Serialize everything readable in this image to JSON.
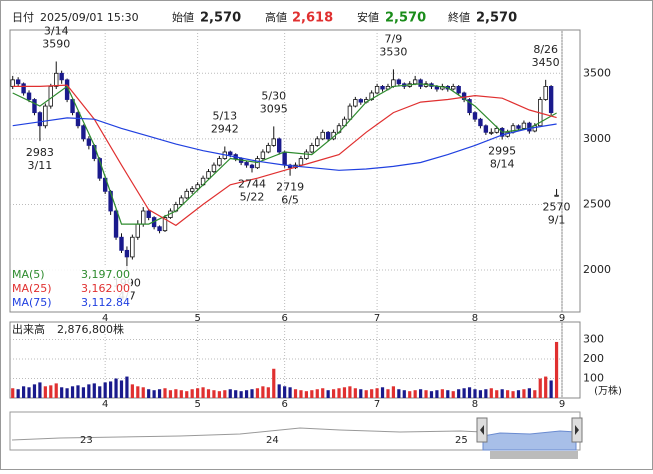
{
  "header": {
    "date_label": "日付",
    "datetime": "2025/09/01 15:30",
    "fields": [
      {
        "label": "始値",
        "value": "2,570"
      },
      {
        "label": "高値",
        "value": "2,618"
      },
      {
        "label": "安値",
        "value": "2,570"
      },
      {
        "label": "終値",
        "value": "2,570"
      }
    ]
  },
  "chart_data": [
    {
      "type": "candlestick",
      "xlim": [
        -0.5,
        101
      ],
      "ylim": [
        1680,
        3830
      ],
      "yticks": [
        2000,
        2500,
        3000,
        3500
      ],
      "grid": true,
      "xticks": [
        {
          "value": 17,
          "label": "4"
        },
        {
          "value": 34,
          "label": "5"
        },
        {
          "value": 50,
          "label": "6"
        },
        {
          "value": 67,
          "label": "7"
        },
        {
          "value": 85,
          "label": "8"
        },
        {
          "value": 101,
          "label": "9"
        }
      ],
      "up_color": "#ffffff",
      "down_color": "#1a1a8c",
      "ohlc": [
        [
          3400,
          3480,
          3380,
          3450
        ],
        [
          3450,
          3470,
          3400,
          3420
        ],
        [
          3420,
          3430,
          3330,
          3350
        ],
        [
          3350,
          3370,
          3280,
          3300
        ],
        [
          3300,
          3310,
          3180,
          3200
        ],
        [
          3200,
          3210,
          2983,
          3100
        ],
        [
          3100,
          3270,
          3080,
          3250
        ],
        [
          3250,
          3420,
          3230,
          3400
        ],
        [
          3400,
          3590,
          3380,
          3500
        ],
        [
          3500,
          3520,
          3420,
          3450
        ],
        [
          3450,
          3460,
          3280,
          3300
        ],
        [
          3300,
          3310,
          3180,
          3200
        ],
        [
          3200,
          3210,
          3080,
          3100
        ],
        [
          3100,
          3110,
          2980,
          3000
        ],
        [
          3000,
          3020,
          2920,
          2950
        ],
        [
          2950,
          2960,
          2830,
          2850
        ],
        [
          2850,
          2860,
          2680,
          2700
        ],
        [
          2700,
          2720,
          2580,
          2600
        ],
        [
          2600,
          2610,
          2420,
          2450
        ],
        [
          2450,
          2460,
          2230,
          2250
        ],
        [
          2250,
          2280,
          2130,
          2150
        ],
        [
          2150,
          2180,
          1990,
          2100
        ],
        [
          2100,
          2270,
          2080,
          2250
        ],
        [
          2250,
          2380,
          2230,
          2350
        ],
        [
          2350,
          2480,
          2330,
          2450
        ],
        [
          2450,
          2460,
          2380,
          2400
        ],
        [
          2400,
          2410,
          2310,
          2330
        ],
        [
          2330,
          2340,
          2280,
          2300
        ],
        [
          2300,
          2420,
          2290,
          2400
        ],
        [
          2400,
          2470,
          2390,
          2450
        ],
        [
          2450,
          2520,
          2440,
          2500
        ],
        [
          2500,
          2570,
          2490,
          2550
        ],
        [
          2550,
          2620,
          2540,
          2600
        ],
        [
          2600,
          2640,
          2580,
          2620
        ],
        [
          2620,
          2670,
          2600,
          2650
        ],
        [
          2650,
          2720,
          2640,
          2700
        ],
        [
          2700,
          2770,
          2690,
          2750
        ],
        [
          2750,
          2820,
          2740,
          2800
        ],
        [
          2800,
          2870,
          2790,
          2850
        ],
        [
          2850,
          2942,
          2840,
          2900
        ],
        [
          2900,
          2910,
          2860,
          2880
        ],
        [
          2880,
          2890,
          2830,
          2850
        ],
        [
          2850,
          2860,
          2800,
          2820
        ],
        [
          2820,
          2830,
          2780,
          2800
        ],
        [
          2800,
          2810,
          2744,
          2780
        ],
        [
          2780,
          2870,
          2770,
          2850
        ],
        [
          2850,
          2920,
          2840,
          2900
        ],
        [
          2900,
          2970,
          2890,
          2950
        ],
        [
          2950,
          3095,
          2940,
          3000
        ],
        [
          3000,
          3010,
          2880,
          2900
        ],
        [
          2900,
          2910,
          2780,
          2800
        ],
        [
          2800,
          2810,
          2719,
          2780
        ],
        [
          2780,
          2820,
          2770,
          2800
        ],
        [
          2800,
          2870,
          2790,
          2850
        ],
        [
          2850,
          2920,
          2840,
          2900
        ],
        [
          2900,
          2970,
          2890,
          2950
        ],
        [
          2950,
          3020,
          2940,
          3000
        ],
        [
          3000,
          3070,
          2990,
          3050
        ],
        [
          3050,
          3060,
          2980,
          3000
        ],
        [
          3000,
          3070,
          2990,
          3050
        ],
        [
          3050,
          3120,
          3040,
          3100
        ],
        [
          3100,
          3170,
          3090,
          3150
        ],
        [
          3150,
          3270,
          3140,
          3250
        ],
        [
          3250,
          3320,
          3240,
          3300
        ],
        [
          3300,
          3310,
          3260,
          3280
        ],
        [
          3280,
          3320,
          3270,
          3300
        ],
        [
          3300,
          3370,
          3290,
          3350
        ],
        [
          3350,
          3420,
          3340,
          3400
        ],
        [
          3400,
          3410,
          3360,
          3380
        ],
        [
          3380,
          3420,
          3370,
          3400
        ],
        [
          3400,
          3530,
          3390,
          3450
        ],
        [
          3450,
          3460,
          3400,
          3420
        ],
        [
          3420,
          3430,
          3380,
          3400
        ],
        [
          3400,
          3440,
          3390,
          3420
        ],
        [
          3420,
          3480,
          3410,
          3450
        ],
        [
          3450,
          3460,
          3380,
          3400
        ],
        [
          3400,
          3440,
          3390,
          3420
        ],
        [
          3420,
          3430,
          3380,
          3400
        ],
        [
          3400,
          3410,
          3360,
          3380
        ],
        [
          3380,
          3420,
          3370,
          3400
        ],
        [
          3400,
          3410,
          3360,
          3380
        ],
        [
          3380,
          3420,
          3370,
          3400
        ],
        [
          3400,
          3410,
          3330,
          3350
        ],
        [
          3350,
          3360,
          3280,
          3300
        ],
        [
          3300,
          3310,
          3180,
          3200
        ],
        [
          3200,
          3210,
          3130,
          3150
        ],
        [
          3150,
          3160,
          3080,
          3100
        ],
        [
          3100,
          3110,
          3030,
          3050
        ],
        [
          3050,
          3080,
          3030,
          3050
        ],
        [
          3050,
          3100,
          3040,
          3080
        ],
        [
          3080,
          3090,
          2995,
          3020
        ],
        [
          3020,
          3070,
          3010,
          3050
        ],
        [
          3050,
          3120,
          3040,
          3100
        ],
        [
          3100,
          3110,
          3060,
          3080
        ],
        [
          3080,
          3140,
          3070,
          3120
        ],
        [
          3120,
          3130,
          3040,
          3060
        ],
        [
          3060,
          3120,
          3050,
          3100
        ],
        [
          3100,
          3320,
          3090,
          3300
        ],
        [
          3300,
          3450,
          3290,
          3400
        ],
        [
          3400,
          3410,
          3180,
          3200
        ],
        [
          2570,
          2618,
          2570,
          2570
        ]
      ],
      "ma_x": [
        0,
        5,
        10,
        15,
        20,
        25,
        30,
        35,
        40,
        45,
        50,
        55,
        60,
        65,
        70,
        75,
        80,
        85,
        90,
        95,
        100
      ],
      "series": [
        {
          "name": "MA(5)",
          "color": "#2e8b2e",
          "value_label": "3,197.00",
          "values": [
            3350,
            3250,
            3400,
            2950,
            2350,
            2350,
            2450,
            2650,
            2850,
            2820,
            2900,
            2880,
            3050,
            3280,
            3400,
            3420,
            3390,
            3250,
            3050,
            3080,
            3197
          ]
        },
        {
          "name": "MA(25)",
          "color": "#e03030",
          "value_label": "3,162.00",
          "values": [
            3400,
            3400,
            3410,
            3150,
            2800,
            2460,
            2340,
            2500,
            2650,
            2700,
            2760,
            2820,
            2880,
            3050,
            3200,
            3280,
            3300,
            3330,
            3310,
            3220,
            3162
          ]
        },
        {
          "name": "MA(75)",
          "color": "#2040e0",
          "value_label": "3,112.84",
          "values": [
            3100,
            3130,
            3160,
            3150,
            3080,
            3020,
            2960,
            2910,
            2870,
            2830,
            2800,
            2780,
            2760,
            2770,
            2790,
            2820,
            2880,
            2950,
            3030,
            3080,
            3113
          ]
        }
      ],
      "annotations": [
        {
          "index": 8,
          "side": "above",
          "date": "3/14",
          "price": 3590
        },
        {
          "index": 5,
          "side": "below",
          "date": "3/11",
          "price": 2983
        },
        {
          "index": 21,
          "side": "below",
          "date": "4/7",
          "price": 1990
        },
        {
          "index": 39,
          "side": "above",
          "date": "5/13",
          "price": 2942
        },
        {
          "index": 44,
          "side": "below",
          "date": "5/22",
          "price": 2744
        },
        {
          "index": 48,
          "side": "above",
          "date": "5/30",
          "price": 3095
        },
        {
          "index": 51,
          "side": "below",
          "date": "6/5",
          "price": 2719
        },
        {
          "index": 70,
          "side": "above",
          "date": "7/9",
          "price": 3530
        },
        {
          "index": 90,
          "side": "below",
          "date": "8/14",
          "price": 2995
        },
        {
          "index": 98,
          "side": "above",
          "date": "8/26",
          "price": 3450
        },
        {
          "index": 100,
          "side": "below",
          "date": "9/1",
          "price": 2570
        }
      ]
    },
    {
      "type": "bar",
      "title": "出来高",
      "value_label": "2,876,800株",
      "y_unit": "(万株)",
      "xlim": [
        -0.5,
        101
      ],
      "ylim": [
        0,
        390
      ],
      "yticks": [
        100,
        200,
        300
      ],
      "xticks": [
        {
          "value": 17,
          "label": "4"
        },
        {
          "value": 34,
          "label": "5"
        },
        {
          "value": 50,
          "label": "6"
        },
        {
          "value": 67,
          "label": "7"
        },
        {
          "value": 85,
          "label": "8"
        },
        {
          "value": 101,
          "label": "9"
        }
      ],
      "up_color": "#e03030",
      "down_color": "#1a1a8c",
      "values": [
        50,
        45,
        60,
        55,
        70,
        80,
        60,
        65,
        75,
        55,
        50,
        60,
        65,
        55,
        70,
        75,
        60,
        80,
        85,
        100,
        90,
        110,
        70,
        60,
        55,
        45,
        40,
        45,
        50,
        40,
        45,
        40,
        35,
        45,
        50,
        55,
        45,
        40,
        35,
        40,
        45,
        40,
        35,
        40,
        45,
        50,
        60,
        55,
        150,
        70,
        60,
        55,
        45,
        40,
        35,
        40,
        45,
        50,
        40,
        45,
        50,
        55,
        60,
        50,
        45,
        40,
        45,
        50,
        55,
        45,
        60,
        45,
        40,
        35,
        40,
        45,
        40,
        35,
        40,
        45,
        40,
        35,
        45,
        50,
        55,
        45,
        40,
        45,
        50,
        40,
        45,
        40,
        35,
        40,
        45,
        50,
        40,
        100,
        110,
        90,
        287.68
      ]
    }
  ],
  "navigator": {
    "labels": [
      "23",
      "24",
      "25"
    ]
  }
}
